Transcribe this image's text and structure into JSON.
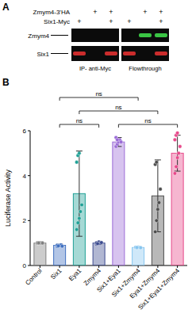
{
  "panel_a": {
    "label": "A",
    "rows": [
      {
        "label": "Zmym4-3'HA",
        "signs": [
          null,
          "+",
          "+",
          null,
          "+",
          "+"
        ]
      },
      {
        "label": "Six1-Myc",
        "signs": [
          "+",
          null,
          "+",
          "+",
          null,
          "+"
        ]
      }
    ],
    "blots": [
      "Zmym4",
      "Six1"
    ],
    "groups": [
      "IP- anti-Myc",
      "Flowthrough"
    ]
  },
  "chart_data": {
    "type": "bar",
    "panel_label": "B",
    "y_label": "Luciferase Activity",
    "categories": [
      "Control",
      "Six1",
      "Eya1",
      "Zmym4",
      "Six1+Eya1",
      "Six1+Zmym4",
      "Eya1+Zmym4",
      "Six1+Eya1+Zmym4"
    ],
    "values": [
      1,
      0.9,
      3.2,
      1.0,
      5.5,
      0.8,
      3.1,
      5.0
    ],
    "errors": [
      0.05,
      0.06,
      1.9,
      0.06,
      0.2,
      0.04,
      1.6,
      0.8
    ],
    "points": [
      [
        1,
        1,
        1,
        1,
        1,
        1,
        1
      ],
      [
        0.85,
        0.9,
        0.88,
        0.92,
        0.86,
        0.9,
        0.87
      ],
      [
        1.6,
        1.9,
        2.1,
        2.4,
        2.7,
        4.6,
        4.9,
        5.0
      ],
      [
        0.95,
        1.0,
        1.05,
        0.98,
        1.02,
        1.0,
        0.97
      ],
      [
        5.3,
        5.4,
        5.5,
        5.6,
        5.5,
        5.7,
        5.6
      ],
      [
        0.8,
        0.78,
        0.82,
        0.8,
        0.79,
        0.81,
        0.8
      ],
      [
        1.5,
        2.0,
        2.5,
        2.8,
        3.4,
        4.5,
        4.6
      ],
      [
        4.1,
        4.4,
        4.8,
        5.0,
        5.3,
        5.6,
        5.8,
        5.9
      ]
    ],
    "colors": [
      "#7f7f7f",
      "#3f6fc0",
      "#1fa095",
      "#3b4a8f",
      "#9a6ad6",
      "#86c5ef",
      "#4d4d4d",
      "#e8488a"
    ],
    "comparisons": [
      {
        "groups": [
          1,
          3
        ],
        "label": "ns"
      },
      {
        "groups": [
          4,
          7
        ],
        "label": "ns"
      },
      {
        "groups": [
          2,
          6
        ],
        "label": "ns"
      },
      {
        "groups": [
          1,
          5
        ],
        "label": "ns"
      }
    ],
    "ylim": [
      0,
      6
    ],
    "yticks": [
      0,
      2,
      4,
      6
    ],
    "grid": false
  }
}
